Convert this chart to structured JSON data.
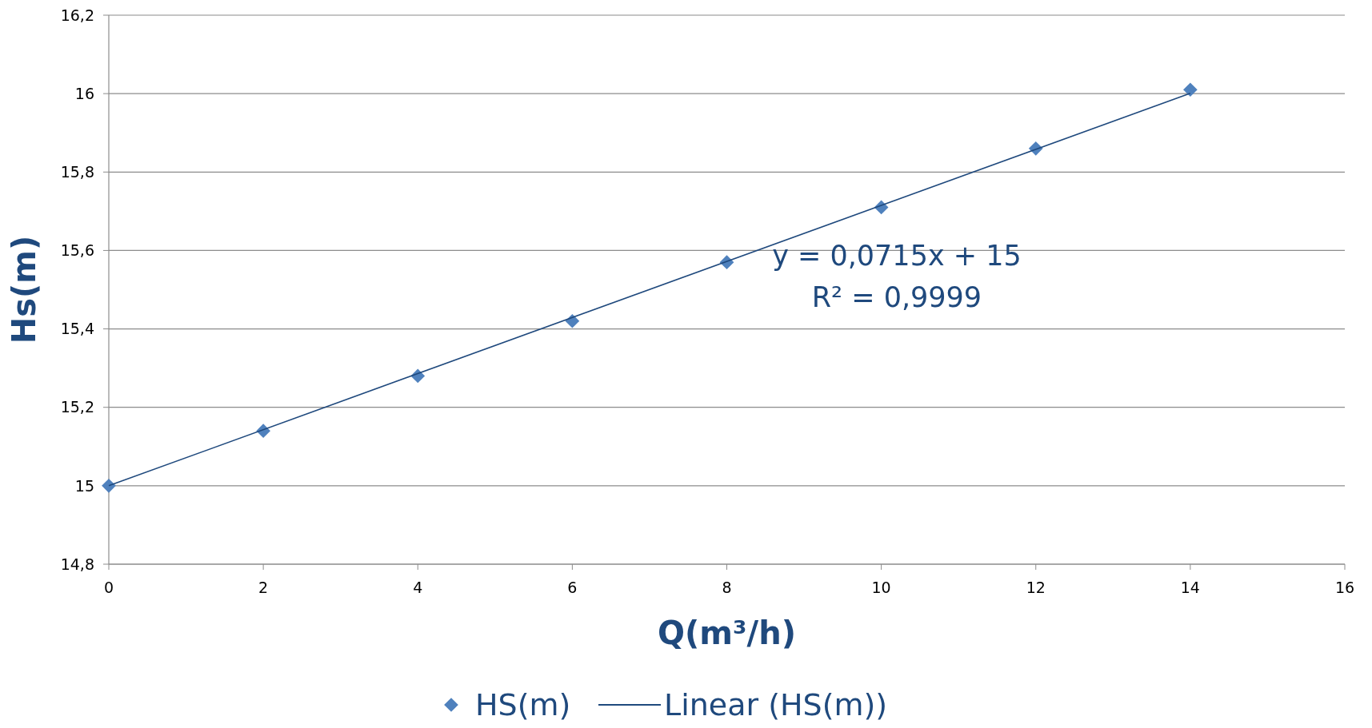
{
  "chart_data": {
    "type": "scatter",
    "xlabel": "Q(m³/h)",
    "ylabel": "Hs(m)",
    "xlim": [
      0,
      16
    ],
    "xticks": [
      0,
      2,
      4,
      6,
      8,
      10,
      12,
      14,
      16
    ],
    "ylim": [
      14.8,
      16.2
    ],
    "yticks": [
      {
        "value": 14.8,
        "label": "14,8"
      },
      {
        "value": 15,
        "label": "15"
      },
      {
        "value": 15.2,
        "label": "15,2"
      },
      {
        "value": 15.4,
        "label": "15,4"
      },
      {
        "value": 15.6,
        "label": "15,6"
      },
      {
        "value": 15.8,
        "label": "15,8"
      },
      {
        "value": 16,
        "label": "16"
      },
      {
        "value": 16.2,
        "label": "16,2"
      }
    ],
    "grid": "y",
    "legend": "bottom",
    "annotations": [
      "y = 0,0715x + 15",
      "R² = 0,9999"
    ],
    "series": [
      {
        "name": "HS(m)",
        "marker": "diamond",
        "color": "#4f81bd",
        "x": [
          0,
          2,
          4,
          6,
          8,
          10,
          12,
          14
        ],
        "values": [
          15,
          15.14,
          15.28,
          15.42,
          15.57,
          15.71,
          15.86,
          16.01
        ]
      },
      {
        "name": "Linear (HS(m))",
        "type": "line",
        "marker": "none",
        "color": "#1f497d",
        "x": [
          0,
          14
        ],
        "values": [
          15,
          16.001
        ]
      }
    ]
  }
}
